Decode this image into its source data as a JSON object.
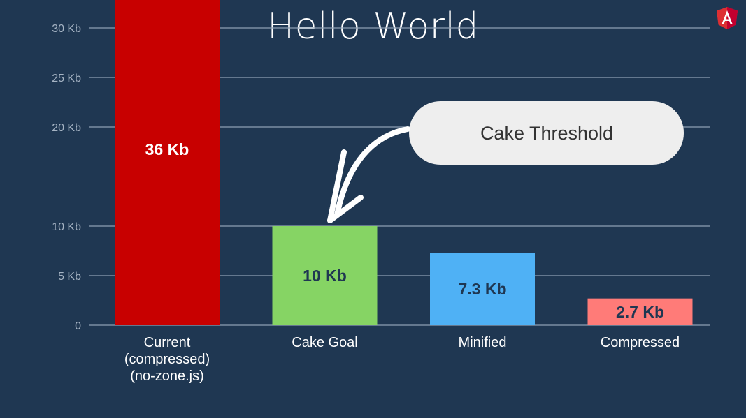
{
  "slide": {
    "title": "Hello World",
    "logo": "angular-logo-icon"
  },
  "colors": {
    "background": "#1f3752",
    "grid": "#8ea0b4",
    "bar_current": "#c80000",
    "bar_goal": "#86d464",
    "bar_minified": "#4fb1f5",
    "bar_compressed": "#ff7b78",
    "callout": "#eeeeee",
    "logo": "#dd2f33"
  },
  "callout": {
    "text": "Cake Threshold",
    "arrow_icon": "curved-arrow-icon"
  },
  "chart_data": {
    "type": "bar",
    "title": "Hello World",
    "categories": [
      [
        "Current",
        "(compressed)",
        "(no-zone.js)"
      ],
      [
        "Cake Goal"
      ],
      [
        "Minified"
      ],
      [
        "Compressed"
      ]
    ],
    "values": [
      36,
      10,
      7.3,
      2.7
    ],
    "value_labels": [
      "36 Kb",
      "10 Kb",
      "7.3 Kb",
      "2.7 Kb"
    ],
    "bar_colors": [
      "#c80000",
      "#86d464",
      "#4fb1f5",
      "#ff7b78"
    ],
    "value_label_colors": [
      "#ffffff",
      "#1f3752",
      "#1f3752",
      "#1f3752"
    ],
    "yticks": [
      0,
      5,
      10,
      20,
      25,
      30
    ],
    "ytick_labels": [
      "0",
      "5 Kb",
      "10 Kb",
      "20 Kb",
      "25 Kb",
      "30 Kb"
    ],
    "ylim": [
      0,
      36
    ],
    "grid": true,
    "xlabel": "",
    "ylabel": ""
  }
}
